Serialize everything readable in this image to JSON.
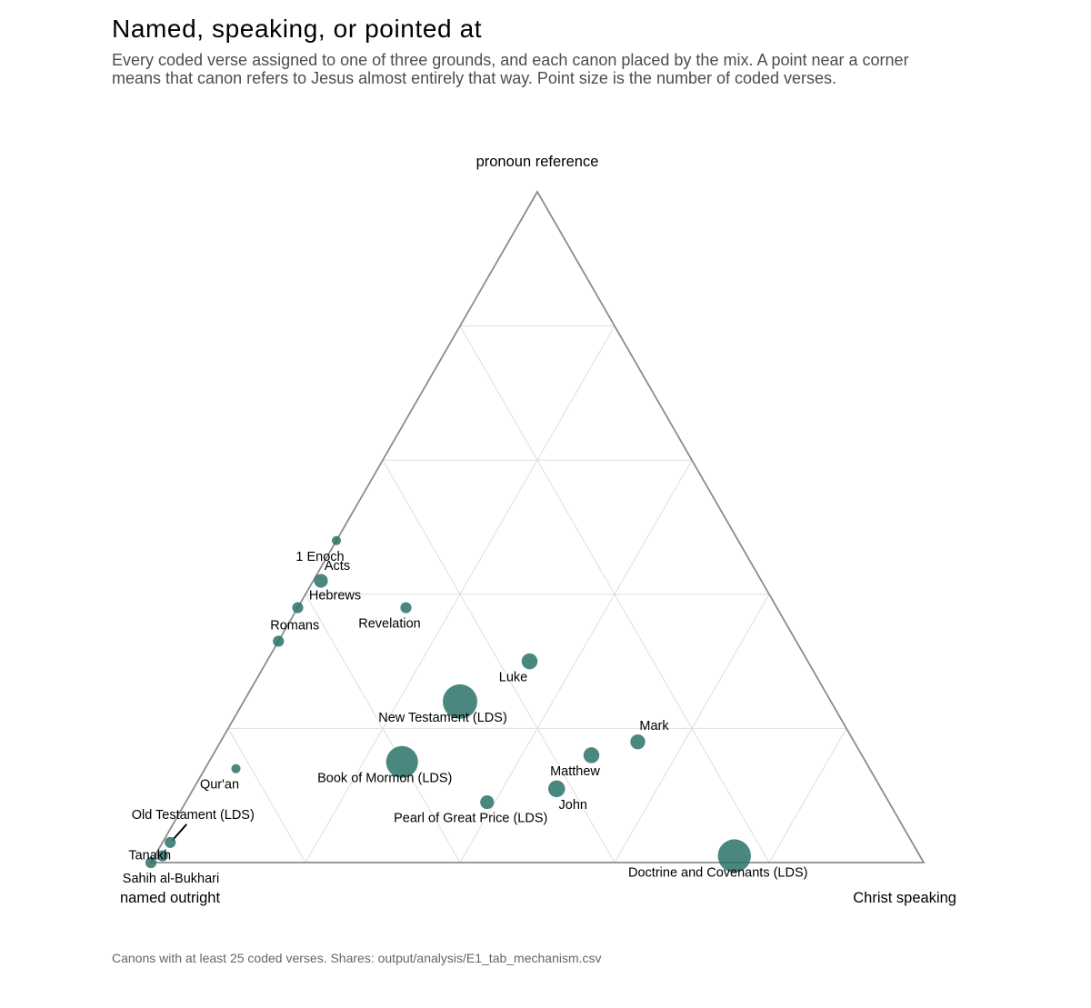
{
  "title": "Named, speaking, or pointed at",
  "subtitle": "Every coded verse assigned to one of three grounds, and each canon placed by the mix. A point near a corner means that canon refers to Jesus almost entirely that way. Point size is the number of coded verses.",
  "caption": "Canons with at least 25 coded verses. Shares: output/analysis/E1_tab_mechanism.csv",
  "chart_data": {
    "type": "scatter",
    "subtype": "ternary",
    "axes": {
      "top": "pronoun reference",
      "left": "named outright",
      "right": "Christ speaking"
    },
    "grid": true,
    "grid_step": 0.2,
    "point_color": "#2a7268",
    "points": [
      {
        "label": "1 Enoch",
        "named": 0.52,
        "pronoun": 0.48,
        "speaking": 0.0,
        "size": 1
      },
      {
        "label": "Acts",
        "named": 0.57,
        "pronoun": 0.42,
        "speaking": 0.01,
        "size": 4
      },
      {
        "label": "Hebrews",
        "named": 0.62,
        "pronoun": 0.38,
        "speaking": 0.0,
        "size": 2
      },
      {
        "label": "Romans",
        "named": 0.67,
        "pronoun": 0.33,
        "speaking": 0.0,
        "size": 2
      },
      {
        "label": "Revelation",
        "named": 0.48,
        "pronoun": 0.38,
        "speaking": 0.14,
        "size": 2
      },
      {
        "label": "Luke",
        "named": 0.36,
        "pronoun": 0.3,
        "speaking": 0.34,
        "size": 6
      },
      {
        "label": "New Testament (LDS)",
        "named": 0.48,
        "pronoun": 0.24,
        "speaking": 0.28,
        "size": 42
      },
      {
        "label": "Mark",
        "named": 0.28,
        "pronoun": 0.18,
        "speaking": 0.54,
        "size": 5
      },
      {
        "label": "Matthew",
        "named": 0.35,
        "pronoun": 0.16,
        "speaking": 0.49,
        "size": 6
      },
      {
        "label": "Book of Mormon (LDS)",
        "named": 0.6,
        "pronoun": 0.15,
        "speaking": 0.25,
        "size": 35
      },
      {
        "label": "Qur'an",
        "named": 0.82,
        "pronoun": 0.14,
        "speaking": 0.04,
        "size": 1
      },
      {
        "label": "Pearl of Great Price (LDS)",
        "named": 0.52,
        "pronoun": 0.09,
        "speaking": 0.39,
        "size": 4
      },
      {
        "label": "John",
        "named": 0.42,
        "pronoun": 0.11,
        "speaking": 0.47,
        "size": 7
      },
      {
        "label": "Old Testament (LDS)",
        "named": 0.96,
        "pronoun": 0.03,
        "speaking": 0.01,
        "size": 2
      },
      {
        "label": "Tanakh",
        "named": 0.98,
        "pronoun": 0.01,
        "speaking": 0.01,
        "size": 2
      },
      {
        "label": "Sahih al-Bukhari",
        "named": 1.0,
        "pronoun": 0.0,
        "speaking": 0.0,
        "size": 2
      },
      {
        "label": "Doctrine and Covenants (LDS)",
        "named": 0.24,
        "pronoun": 0.01,
        "speaking": 0.75,
        "size": 38
      }
    ]
  }
}
